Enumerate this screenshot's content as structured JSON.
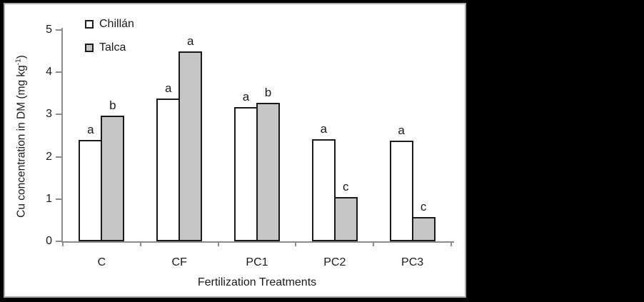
{
  "y_axis_title": {
    "pre": "Cu concentration in DM (mg kg",
    "sup": "-1",
    "post": ")"
  },
  "colors": {
    "background": "#000000",
    "panel": "#ffffff",
    "panel_border": "#a9a9a9",
    "axis": "#8c8c8c",
    "bar_border": "#1a1a1a",
    "text": "#1a1a1a"
  },
  "chart_data": {
    "type": "bar",
    "title": "",
    "xlabel": "Fertilization Treatments",
    "ylabel": "Cu concentration in DM (mg kg⁻¹)",
    "categories": [
      "C",
      "CF",
      "PC1",
      "PC2",
      "PC3"
    ],
    "series": [
      {
        "name": "Chillán",
        "slug": "chillan",
        "color": "#ffffff",
        "values": [
          2.4,
          3.38,
          3.18,
          2.42,
          2.38
        ],
        "letters": [
          "a",
          "a",
          "a",
          "a",
          "a"
        ]
      },
      {
        "name": "Talca",
        "slug": "talca",
        "color": "#c6c6c6",
        "values": [
          2.98,
          4.5,
          3.28,
          1.05,
          0.58
        ],
        "letters": [
          "b",
          "a",
          "b",
          "c",
          "c"
        ]
      }
    ],
    "ylim": [
      0,
      5
    ],
    "yticks": [
      0,
      1,
      2,
      3,
      4,
      5
    ],
    "grid": false,
    "legend_position": "top-left-inside"
  }
}
